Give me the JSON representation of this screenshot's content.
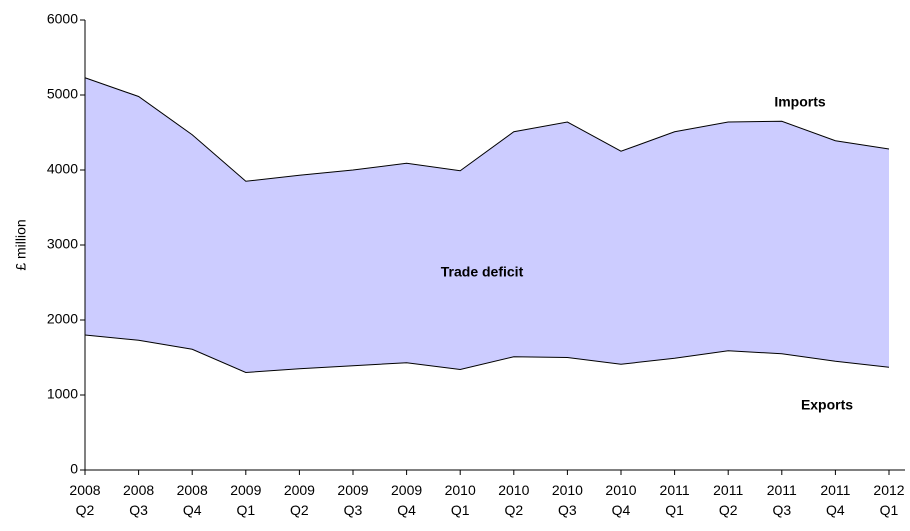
{
  "chart_data": {
    "type": "area",
    "y_label": "£ million",
    "categories": [
      "2008 Q2",
      "2008 Q3",
      "2008 Q4",
      "2009 Q1",
      "2009 Q2",
      "2009 Q3",
      "2009 Q4",
      "2010 Q1",
      "2010 Q2",
      "2010 Q3",
      "2010 Q4",
      "2011 Q1",
      "2011 Q2",
      "2011 Q3",
      "2011 Q4",
      "2012 Q1"
    ],
    "series": [
      {
        "name": "Imports",
        "color": "#ccccff",
        "values": [
          5230,
          4980,
          4470,
          3850,
          3930,
          4000,
          4090,
          3990,
          4510,
          4640,
          4250,
          4510,
          4640,
          4650,
          4390,
          4280
        ]
      },
      {
        "name": "Exports",
        "color": "#ffffff",
        "values": [
          1800,
          1730,
          1610,
          1300,
          1350,
          1390,
          1430,
          1340,
          1510,
          1500,
          1410,
          1490,
          1590,
          1550,
          1450,
          1370
        ]
      }
    ],
    "line_color": "#000000",
    "annotation": "Trade deficit",
    "ylim": [
      0,
      6000
    ],
    "yticks": [
      0,
      1000,
      2000,
      3000,
      4000,
      5000,
      6000
    ]
  }
}
